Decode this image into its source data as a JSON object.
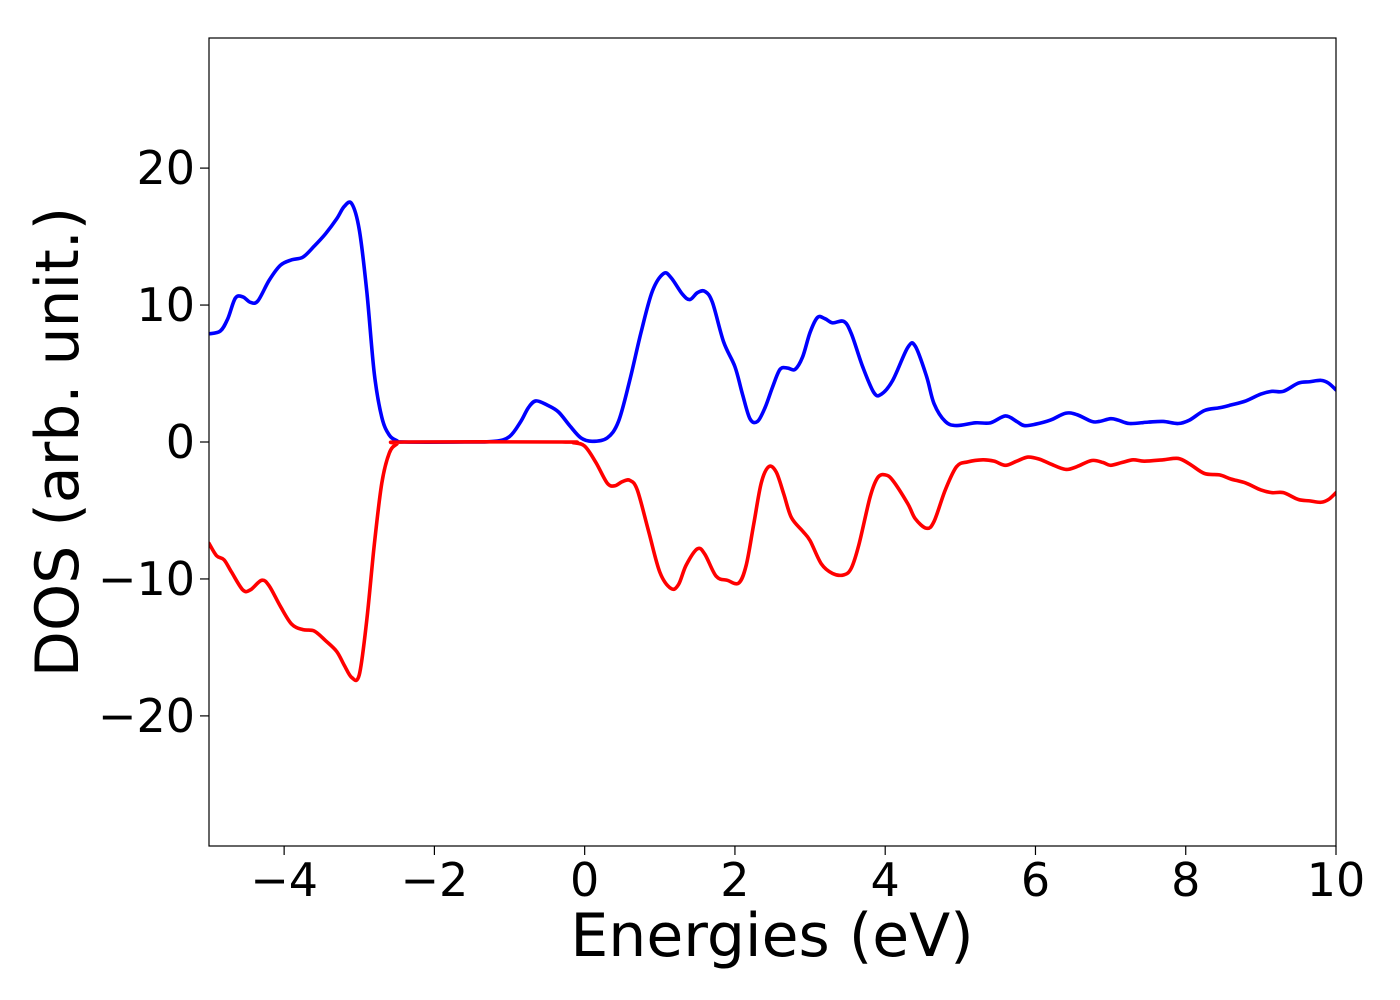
{
  "chart_data": {
    "type": "line",
    "title": "",
    "xlabel": "Energies (eV)",
    "ylabel": "DOS (arb. unit.)",
    "xlim": [
      -5,
      10
    ],
    "ylim": [
      -29.5,
      29.5
    ],
    "x_ticks": [
      -4,
      -2,
      0,
      2,
      4,
      6,
      8,
      10
    ],
    "x_tick_labels": [
      "−4",
      "−2",
      "0",
      "2",
      "4",
      "6",
      "8",
      "10"
    ],
    "y_ticks": [
      -20,
      -10,
      0,
      10,
      20
    ],
    "y_tick_labels": [
      "−20",
      "−10",
      "0",
      "10",
      "20"
    ],
    "grid": false,
    "legend": "none",
    "series": [
      {
        "color": "#0000ff",
        "points": [
          [
            -5.0,
            7.9
          ],
          [
            -4.85,
            8.1
          ],
          [
            -4.75,
            9.0
          ],
          [
            -4.65,
            10.5
          ],
          [
            -4.55,
            10.6
          ],
          [
            -4.45,
            10.2
          ],
          [
            -4.35,
            10.3
          ],
          [
            -4.2,
            11.8
          ],
          [
            -4.05,
            12.9
          ],
          [
            -3.9,
            13.3
          ],
          [
            -3.75,
            13.5
          ],
          [
            -3.6,
            14.3
          ],
          [
            -3.45,
            15.2
          ],
          [
            -3.3,
            16.3
          ],
          [
            -3.2,
            17.2
          ],
          [
            -3.1,
            17.4
          ],
          [
            -3.0,
            15.5
          ],
          [
            -2.9,
            11.0
          ],
          [
            -2.8,
            5.0
          ],
          [
            -2.7,
            1.8
          ],
          [
            -2.6,
            0.5
          ],
          [
            -2.5,
            0.1
          ],
          [
            -2.4,
            0.0
          ],
          [
            -1.6,
            0.0
          ],
          [
            -1.2,
            0.05
          ],
          [
            -1.0,
            0.4
          ],
          [
            -0.85,
            1.5
          ],
          [
            -0.75,
            2.5
          ],
          [
            -0.65,
            3.0
          ],
          [
            -0.5,
            2.7
          ],
          [
            -0.35,
            2.2
          ],
          [
            -0.2,
            1.2
          ],
          [
            -0.05,
            0.3
          ],
          [
            0.1,
            0.05
          ],
          [
            0.3,
            0.3
          ],
          [
            0.45,
            1.5
          ],
          [
            0.6,
            4.5
          ],
          [
            0.75,
            8.0
          ],
          [
            0.9,
            11.0
          ],
          [
            1.05,
            12.3
          ],
          [
            1.15,
            12.0
          ],
          [
            1.3,
            10.8
          ],
          [
            1.4,
            10.4
          ],
          [
            1.5,
            10.9
          ],
          [
            1.6,
            11.0
          ],
          [
            1.7,
            10.2
          ],
          [
            1.85,
            7.3
          ],
          [
            2.0,
            5.5
          ],
          [
            2.1,
            3.5
          ],
          [
            2.2,
            1.7
          ],
          [
            2.3,
            1.5
          ],
          [
            2.4,
            2.5
          ],
          [
            2.5,
            4.0
          ],
          [
            2.6,
            5.3
          ],
          [
            2.7,
            5.4
          ],
          [
            2.8,
            5.3
          ],
          [
            2.9,
            6.2
          ],
          [
            3.0,
            8.0
          ],
          [
            3.1,
            9.1
          ],
          [
            3.2,
            9.0
          ],
          [
            3.3,
            8.7
          ],
          [
            3.45,
            8.8
          ],
          [
            3.55,
            7.9
          ],
          [
            3.7,
            5.5
          ],
          [
            3.85,
            3.6
          ],
          [
            3.95,
            3.5
          ],
          [
            4.1,
            4.5
          ],
          [
            4.3,
            6.9
          ],
          [
            4.4,
            7.0
          ],
          [
            4.55,
            4.8
          ],
          [
            4.65,
            2.8
          ],
          [
            4.8,
            1.5
          ],
          [
            4.95,
            1.2
          ],
          [
            5.2,
            1.4
          ],
          [
            5.4,
            1.4
          ],
          [
            5.6,
            1.9
          ],
          [
            5.75,
            1.5
          ],
          [
            5.85,
            1.2
          ],
          [
            6.0,
            1.3
          ],
          [
            6.2,
            1.6
          ],
          [
            6.4,
            2.1
          ],
          [
            6.55,
            2.0
          ],
          [
            6.75,
            1.5
          ],
          [
            6.85,
            1.5
          ],
          [
            7.0,
            1.7
          ],
          [
            7.1,
            1.6
          ],
          [
            7.25,
            1.35
          ],
          [
            7.5,
            1.45
          ],
          [
            7.7,
            1.5
          ],
          [
            7.9,
            1.35
          ],
          [
            8.05,
            1.6
          ],
          [
            8.25,
            2.3
          ],
          [
            8.45,
            2.5
          ],
          [
            8.6,
            2.7
          ],
          [
            8.8,
            3.0
          ],
          [
            9.0,
            3.5
          ],
          [
            9.15,
            3.7
          ],
          [
            9.3,
            3.7
          ],
          [
            9.5,
            4.3
          ],
          [
            9.65,
            4.4
          ],
          [
            9.8,
            4.5
          ],
          [
            9.9,
            4.3
          ],
          [
            10.0,
            3.8
          ]
        ]
      },
      {
        "color": "#ff0000",
        "points": [
          [
            -5.0,
            -7.4
          ],
          [
            -4.9,
            -8.3
          ],
          [
            -4.8,
            -8.6
          ],
          [
            -4.7,
            -9.5
          ],
          [
            -4.55,
            -10.8
          ],
          [
            -4.45,
            -10.8
          ],
          [
            -4.3,
            -10.1
          ],
          [
            -4.2,
            -10.5
          ],
          [
            -4.05,
            -12.0
          ],
          [
            -3.9,
            -13.3
          ],
          [
            -3.75,
            -13.7
          ],
          [
            -3.6,
            -13.8
          ],
          [
            -3.45,
            -14.5
          ],
          [
            -3.3,
            -15.3
          ],
          [
            -3.2,
            -16.3
          ],
          [
            -3.1,
            -17.2
          ],
          [
            -3.0,
            -17.0
          ],
          [
            -2.9,
            -13.0
          ],
          [
            -2.8,
            -7.5
          ],
          [
            -2.7,
            -3.0
          ],
          [
            -2.6,
            -0.8
          ],
          [
            -2.5,
            -0.15
          ],
          [
            -2.4,
            0.0
          ],
          [
            -0.3,
            0.0
          ],
          [
            -0.15,
            -0.05
          ],
          [
            0.0,
            -0.3
          ],
          [
            0.15,
            -1.5
          ],
          [
            0.3,
            -3.0
          ],
          [
            0.4,
            -3.2
          ],
          [
            0.5,
            -2.9
          ],
          [
            0.6,
            -2.8
          ],
          [
            0.7,
            -3.5
          ],
          [
            0.85,
            -6.5
          ],
          [
            1.0,
            -9.5
          ],
          [
            1.15,
            -10.7
          ],
          [
            1.25,
            -10.4
          ],
          [
            1.35,
            -9.0
          ],
          [
            1.5,
            -7.8
          ],
          [
            1.6,
            -8.2
          ],
          [
            1.75,
            -9.8
          ],
          [
            1.9,
            -10.1
          ],
          [
            2.05,
            -10.3
          ],
          [
            2.15,
            -9.0
          ],
          [
            2.25,
            -6.0
          ],
          [
            2.35,
            -3.0
          ],
          [
            2.45,
            -1.8
          ],
          [
            2.55,
            -2.2
          ],
          [
            2.65,
            -3.8
          ],
          [
            2.75,
            -5.5
          ],
          [
            2.9,
            -6.5
          ],
          [
            3.0,
            -7.2
          ],
          [
            3.15,
            -8.9
          ],
          [
            3.3,
            -9.6
          ],
          [
            3.45,
            -9.7
          ],
          [
            3.55,
            -9.2
          ],
          [
            3.65,
            -7.5
          ],
          [
            3.8,
            -4.0
          ],
          [
            3.9,
            -2.6
          ],
          [
            4.0,
            -2.4
          ],
          [
            4.1,
            -2.8
          ],
          [
            4.3,
            -4.5
          ],
          [
            4.4,
            -5.6
          ],
          [
            4.55,
            -6.3
          ],
          [
            4.65,
            -5.8
          ],
          [
            4.8,
            -3.5
          ],
          [
            4.95,
            -1.8
          ],
          [
            5.1,
            -1.45
          ],
          [
            5.3,
            -1.3
          ],
          [
            5.45,
            -1.4
          ],
          [
            5.6,
            -1.7
          ],
          [
            5.75,
            -1.4
          ],
          [
            5.9,
            -1.1
          ],
          [
            6.05,
            -1.25
          ],
          [
            6.2,
            -1.6
          ],
          [
            6.4,
            -2.0
          ],
          [
            6.55,
            -1.8
          ],
          [
            6.75,
            -1.35
          ],
          [
            6.9,
            -1.5
          ],
          [
            7.0,
            -1.7
          ],
          [
            7.15,
            -1.5
          ],
          [
            7.3,
            -1.3
          ],
          [
            7.45,
            -1.4
          ],
          [
            7.7,
            -1.3
          ],
          [
            7.9,
            -1.2
          ],
          [
            8.05,
            -1.6
          ],
          [
            8.25,
            -2.3
          ],
          [
            8.45,
            -2.4
          ],
          [
            8.6,
            -2.7
          ],
          [
            8.8,
            -3.0
          ],
          [
            9.0,
            -3.5
          ],
          [
            9.15,
            -3.7
          ],
          [
            9.3,
            -3.7
          ],
          [
            9.5,
            -4.2
          ],
          [
            9.65,
            -4.3
          ],
          [
            9.8,
            -4.4
          ],
          [
            9.9,
            -4.2
          ],
          [
            10.0,
            -3.7
          ]
        ]
      }
    ]
  }
}
